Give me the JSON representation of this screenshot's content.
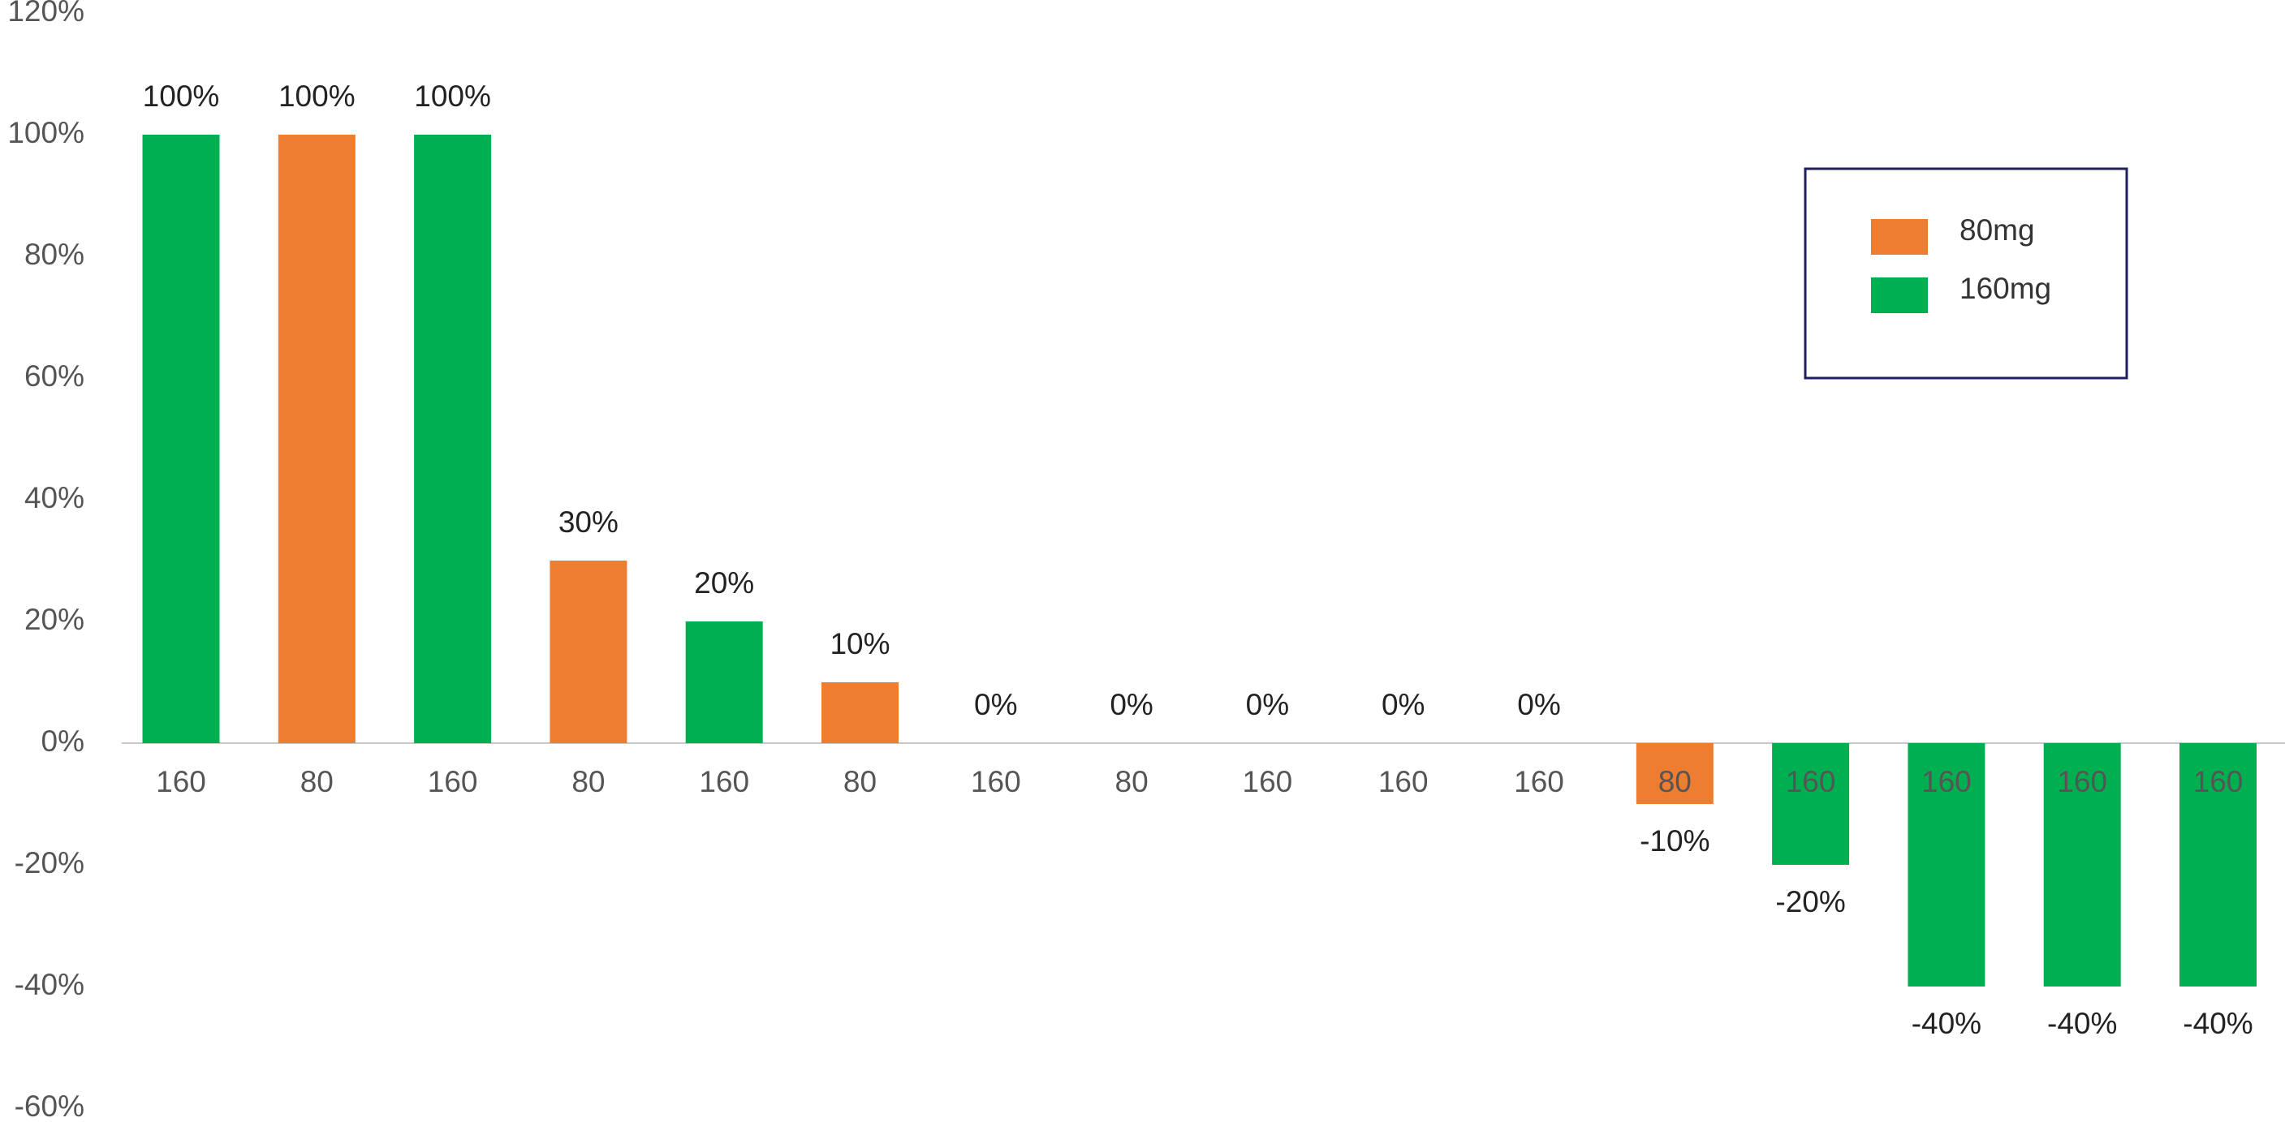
{
  "chart_data": {
    "type": "bar",
    "categories": [
      "160",
      "80",
      "160",
      "80",
      "160",
      "80",
      "160",
      "80",
      "160",
      "160",
      "160",
      "80",
      "160",
      "160",
      "160",
      "160"
    ],
    "series": [
      {
        "name": "80mg",
        "color": "#ed7d31",
        "values": [
          null,
          100,
          null,
          30,
          null,
          10,
          null,
          0,
          null,
          null,
          null,
          -10,
          null,
          null,
          null,
          null
        ],
        "value_labels": [
          null,
          "100%",
          null,
          "30%",
          null,
          "10%",
          null,
          "0%",
          null,
          null,
          null,
          "-10%",
          null,
          null,
          null,
          null
        ]
      },
      {
        "name": "160mg",
        "color": "#00b050",
        "values": [
          100,
          null,
          100,
          null,
          20,
          null,
          0,
          null,
          0,
          0,
          0,
          null,
          -20,
          -40,
          -40,
          -40
        ],
        "value_labels": [
          "100%",
          null,
          "100%",
          null,
          "20%",
          null,
          "0%",
          null,
          "0%",
          "0%",
          "0%",
          null,
          "-20%",
          "-40%",
          "-40%",
          "-40%"
        ]
      }
    ],
    "ylim": [
      -60,
      120
    ],
    "yticks": [
      {
        "value": -60,
        "label": "-60%"
      },
      {
        "value": -40,
        "label": "-40%"
      },
      {
        "value": -20,
        "label": "-20%"
      },
      {
        "value": 0,
        "label": "0%"
      },
      {
        "value": 20,
        "label": "20%"
      },
      {
        "value": 40,
        "label": "40%"
      },
      {
        "value": 60,
        "label": "60%"
      },
      {
        "value": 80,
        "label": "80%"
      },
      {
        "value": 100,
        "label": "100%"
      },
      {
        "value": 120,
        "label": "120%"
      }
    ],
    "grid": false,
    "legend": "upper right"
  }
}
